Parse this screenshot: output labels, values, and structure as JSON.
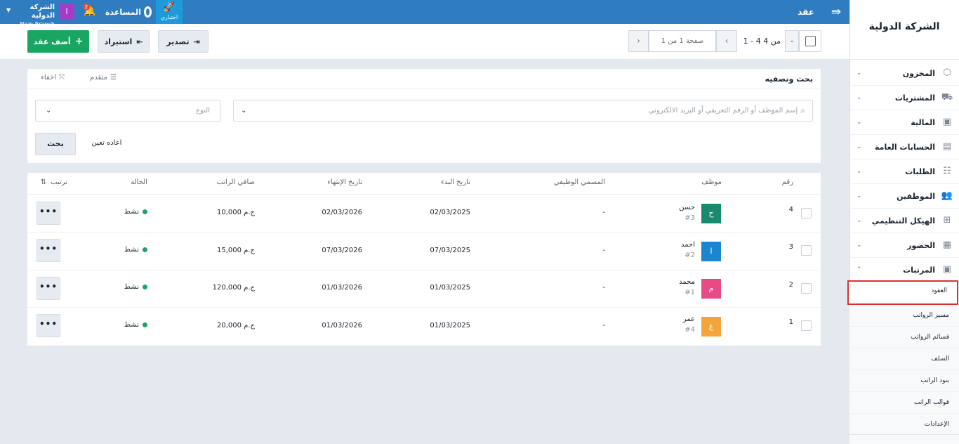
{
  "topbar": {
    "page_title": "عقد",
    "trial_label": "اختباري",
    "help_label": "المساعدة",
    "notification_count": "2",
    "avatar_letter": "ا",
    "company_name": "الشركة الدولية",
    "branch_name": "Main Branch"
  },
  "sidebar": {
    "logo": "الشركة الدولية",
    "items": [
      {
        "label": "المخزون",
        "icon": "box-icon"
      },
      {
        "label": "المشتريات",
        "icon": "truck-icon"
      },
      {
        "label": "المالية",
        "icon": "money-icon"
      },
      {
        "label": "الحسابات العامة",
        "icon": "cash-icon"
      },
      {
        "label": "الطلبات",
        "icon": "checklist-icon"
      },
      {
        "label": "الموظفين",
        "icon": "users-icon"
      },
      {
        "label": "الهيكل التنظيمي",
        "icon": "org-chart-icon"
      },
      {
        "label": "الحضور",
        "icon": "calendar-icon"
      },
      {
        "label": "المرتبات",
        "icon": "payroll-icon"
      }
    ],
    "subitems": [
      "العقود",
      "مسير الرواتب",
      "قسائم الرواتب",
      "السلف",
      "بنود الراتب",
      "قوالب الراتب",
      "الإعدادات"
    ],
    "active_subitem": "العقود"
  },
  "actions": {
    "range_text": "1 - 4 من 4",
    "page_text": "صفحة 1 من 1",
    "export_label": "تصدير",
    "import_label": "استيراد",
    "add_label": "أضف عقد"
  },
  "search": {
    "title": "بحث وتصفيه",
    "advanced_label": "متقدم",
    "hide_label": "اخفاء",
    "query_placeholder": "إسم الموظف أو الرقم التعريفي أو البريد الالكتروني",
    "type_placeholder": "النوع",
    "search_button": "بحث",
    "reset_label": "اعاده تعين"
  },
  "table": {
    "headers": {
      "number": "رقم",
      "employee": "موظف",
      "job_title": "المسمي الوظيفي",
      "start_date": "تاريخ البدء",
      "end_date": "تاريخ الإنتهاء",
      "net_salary": "صافي الراتب",
      "status": "الحالة",
      "sort": "ترتيب"
    },
    "rows": [
      {
        "number": "4",
        "avatar": "ح",
        "avatar_color": "#1a8a6e",
        "name": "حسن",
        "code": "#3",
        "job": "-",
        "start": "02/03/2025",
        "end": "02/03/2026",
        "salary": "10,000 ج.م",
        "status": "نشط"
      },
      {
        "number": "3",
        "avatar": "ا",
        "avatar_color": "#1a86d0",
        "name": "احمد",
        "code": "#2",
        "job": "-",
        "start": "07/03/2025",
        "end": "07/03/2026",
        "salary": "15,000 ج.م",
        "status": "نشط"
      },
      {
        "number": "2",
        "avatar": "م",
        "avatar_color": "#e84a86",
        "name": "محمد",
        "code": "#1",
        "job": "-",
        "start": "01/03/2025",
        "end": "01/03/2026",
        "salary": "120,000 ج.م",
        "status": "نشط"
      },
      {
        "number": "1",
        "avatar": "ع",
        "avatar_color": "#f4a53a",
        "name": "عمر",
        "code": "#4",
        "job": "-",
        "start": "01/03/2025",
        "end": "01/03/2026",
        "salary": "20,000 ج.م",
        "status": "نشط"
      }
    ]
  }
}
